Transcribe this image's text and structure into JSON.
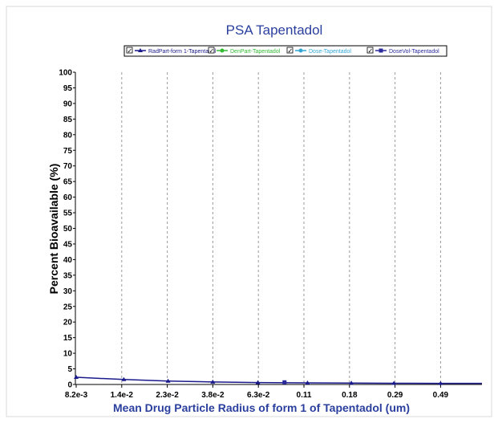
{
  "chart_data": {
    "type": "line",
    "title": "PSA Tapentadol",
    "xlabel": "Mean Drug Particle Radius of form 1 of Tapentadol (um)",
    "ylabel": "Percent Bioavailable (%)",
    "x_tick_labels": [
      "8.2e-3",
      "1.4e-2",
      "2.3e-2",
      "3.8e-2",
      "6.3e-2",
      "0.11",
      "0.18",
      "0.29",
      "0.49"
    ],
    "y_ticks": [
      0,
      5,
      10,
      15,
      20,
      25,
      30,
      35,
      40,
      45,
      50,
      55,
      60,
      65,
      70,
      75,
      80,
      85,
      90,
      95,
      100
    ],
    "ylim": [
      0,
      100
    ],
    "x_scale": "log",
    "grid": "vertical dashed",
    "legend_position": "top",
    "series": [
      {
        "name": "RadPart-form 1-Tapentadol",
        "color": "#1a1a8c",
        "marker": "triangle",
        "checked": true,
        "x": [
          0.0082,
          0.014,
          0.023,
          0.038,
          0.063,
          0.11,
          0.18,
          0.29,
          0.49
        ],
        "values": [
          2.3,
          1.6,
          1.1,
          0.8,
          0.6,
          0.5,
          0.45,
          0.4,
          0.35
        ]
      },
      {
        "name": "DenPart-Tapentadol",
        "color": "#33bb33",
        "marker": "circle",
        "checked": true,
        "x": [],
        "values": []
      },
      {
        "name": "Dose-Tapentadol",
        "color": "#33a6d6",
        "marker": "circle",
        "checked": true,
        "x": [],
        "values": []
      },
      {
        "name": "DoseVol-Tapentadol",
        "color": "#2b2b9e",
        "marker": "square",
        "checked": true,
        "x": [
          0.085
        ],
        "values": [
          0.7
        ]
      }
    ]
  }
}
